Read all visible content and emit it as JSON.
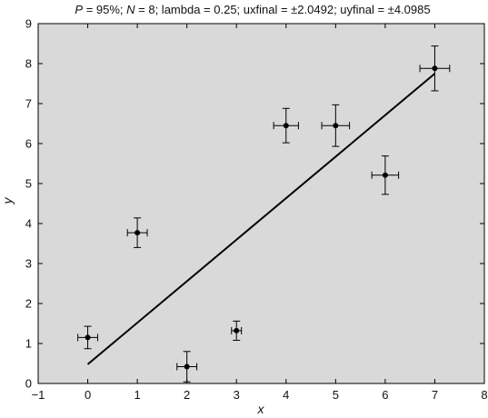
{
  "chart_data": {
    "type": "scatter",
    "title_parts": [
      {
        "text": "P",
        "italic": true
      },
      {
        "text": " = 95%; ",
        "italic": false
      },
      {
        "text": "N",
        "italic": true
      },
      {
        "text": " = 8; lambda = 0.25; uxfinal = ±2.0492; uyfinal = ±4.0985",
        "italic": false
      }
    ],
    "xlabel": "x",
    "ylabel": "y",
    "xlim": [
      -1,
      8
    ],
    "ylim": [
      0,
      9
    ],
    "x_ticks": [
      -1,
      0,
      1,
      2,
      3,
      4,
      5,
      6,
      7,
      8
    ],
    "y_ticks": [
      0,
      1,
      2,
      3,
      4,
      5,
      6,
      7,
      8,
      9
    ],
    "grid": false,
    "background_color": "#d9d9d9",
    "points": [
      {
        "x": 0,
        "y": 1.15,
        "xerr": 0.2,
        "yerr": 0.28
      },
      {
        "x": 1,
        "y": 3.77,
        "xerr": 0.2,
        "yerr": 0.37
      },
      {
        "x": 2,
        "y": 0.42,
        "xerr": 0.2,
        "yerr": 0.38
      },
      {
        "x": 3,
        "y": 1.32,
        "xerr": 0.1,
        "yerr": 0.24
      },
      {
        "x": 4,
        "y": 6.45,
        "xerr": 0.25,
        "yerr": 0.43
      },
      {
        "x": 5,
        "y": 6.45,
        "xerr": 0.28,
        "yerr": 0.52
      },
      {
        "x": 6,
        "y": 5.21,
        "xerr": 0.27,
        "yerr": 0.48
      },
      {
        "x": 7,
        "y": 7.88,
        "xerr": 0.3,
        "yerr": 0.56
      }
    ],
    "fit_line": {
      "x": [
        0,
        7
      ],
      "y": [
        0.48,
        7.75
      ]
    }
  }
}
